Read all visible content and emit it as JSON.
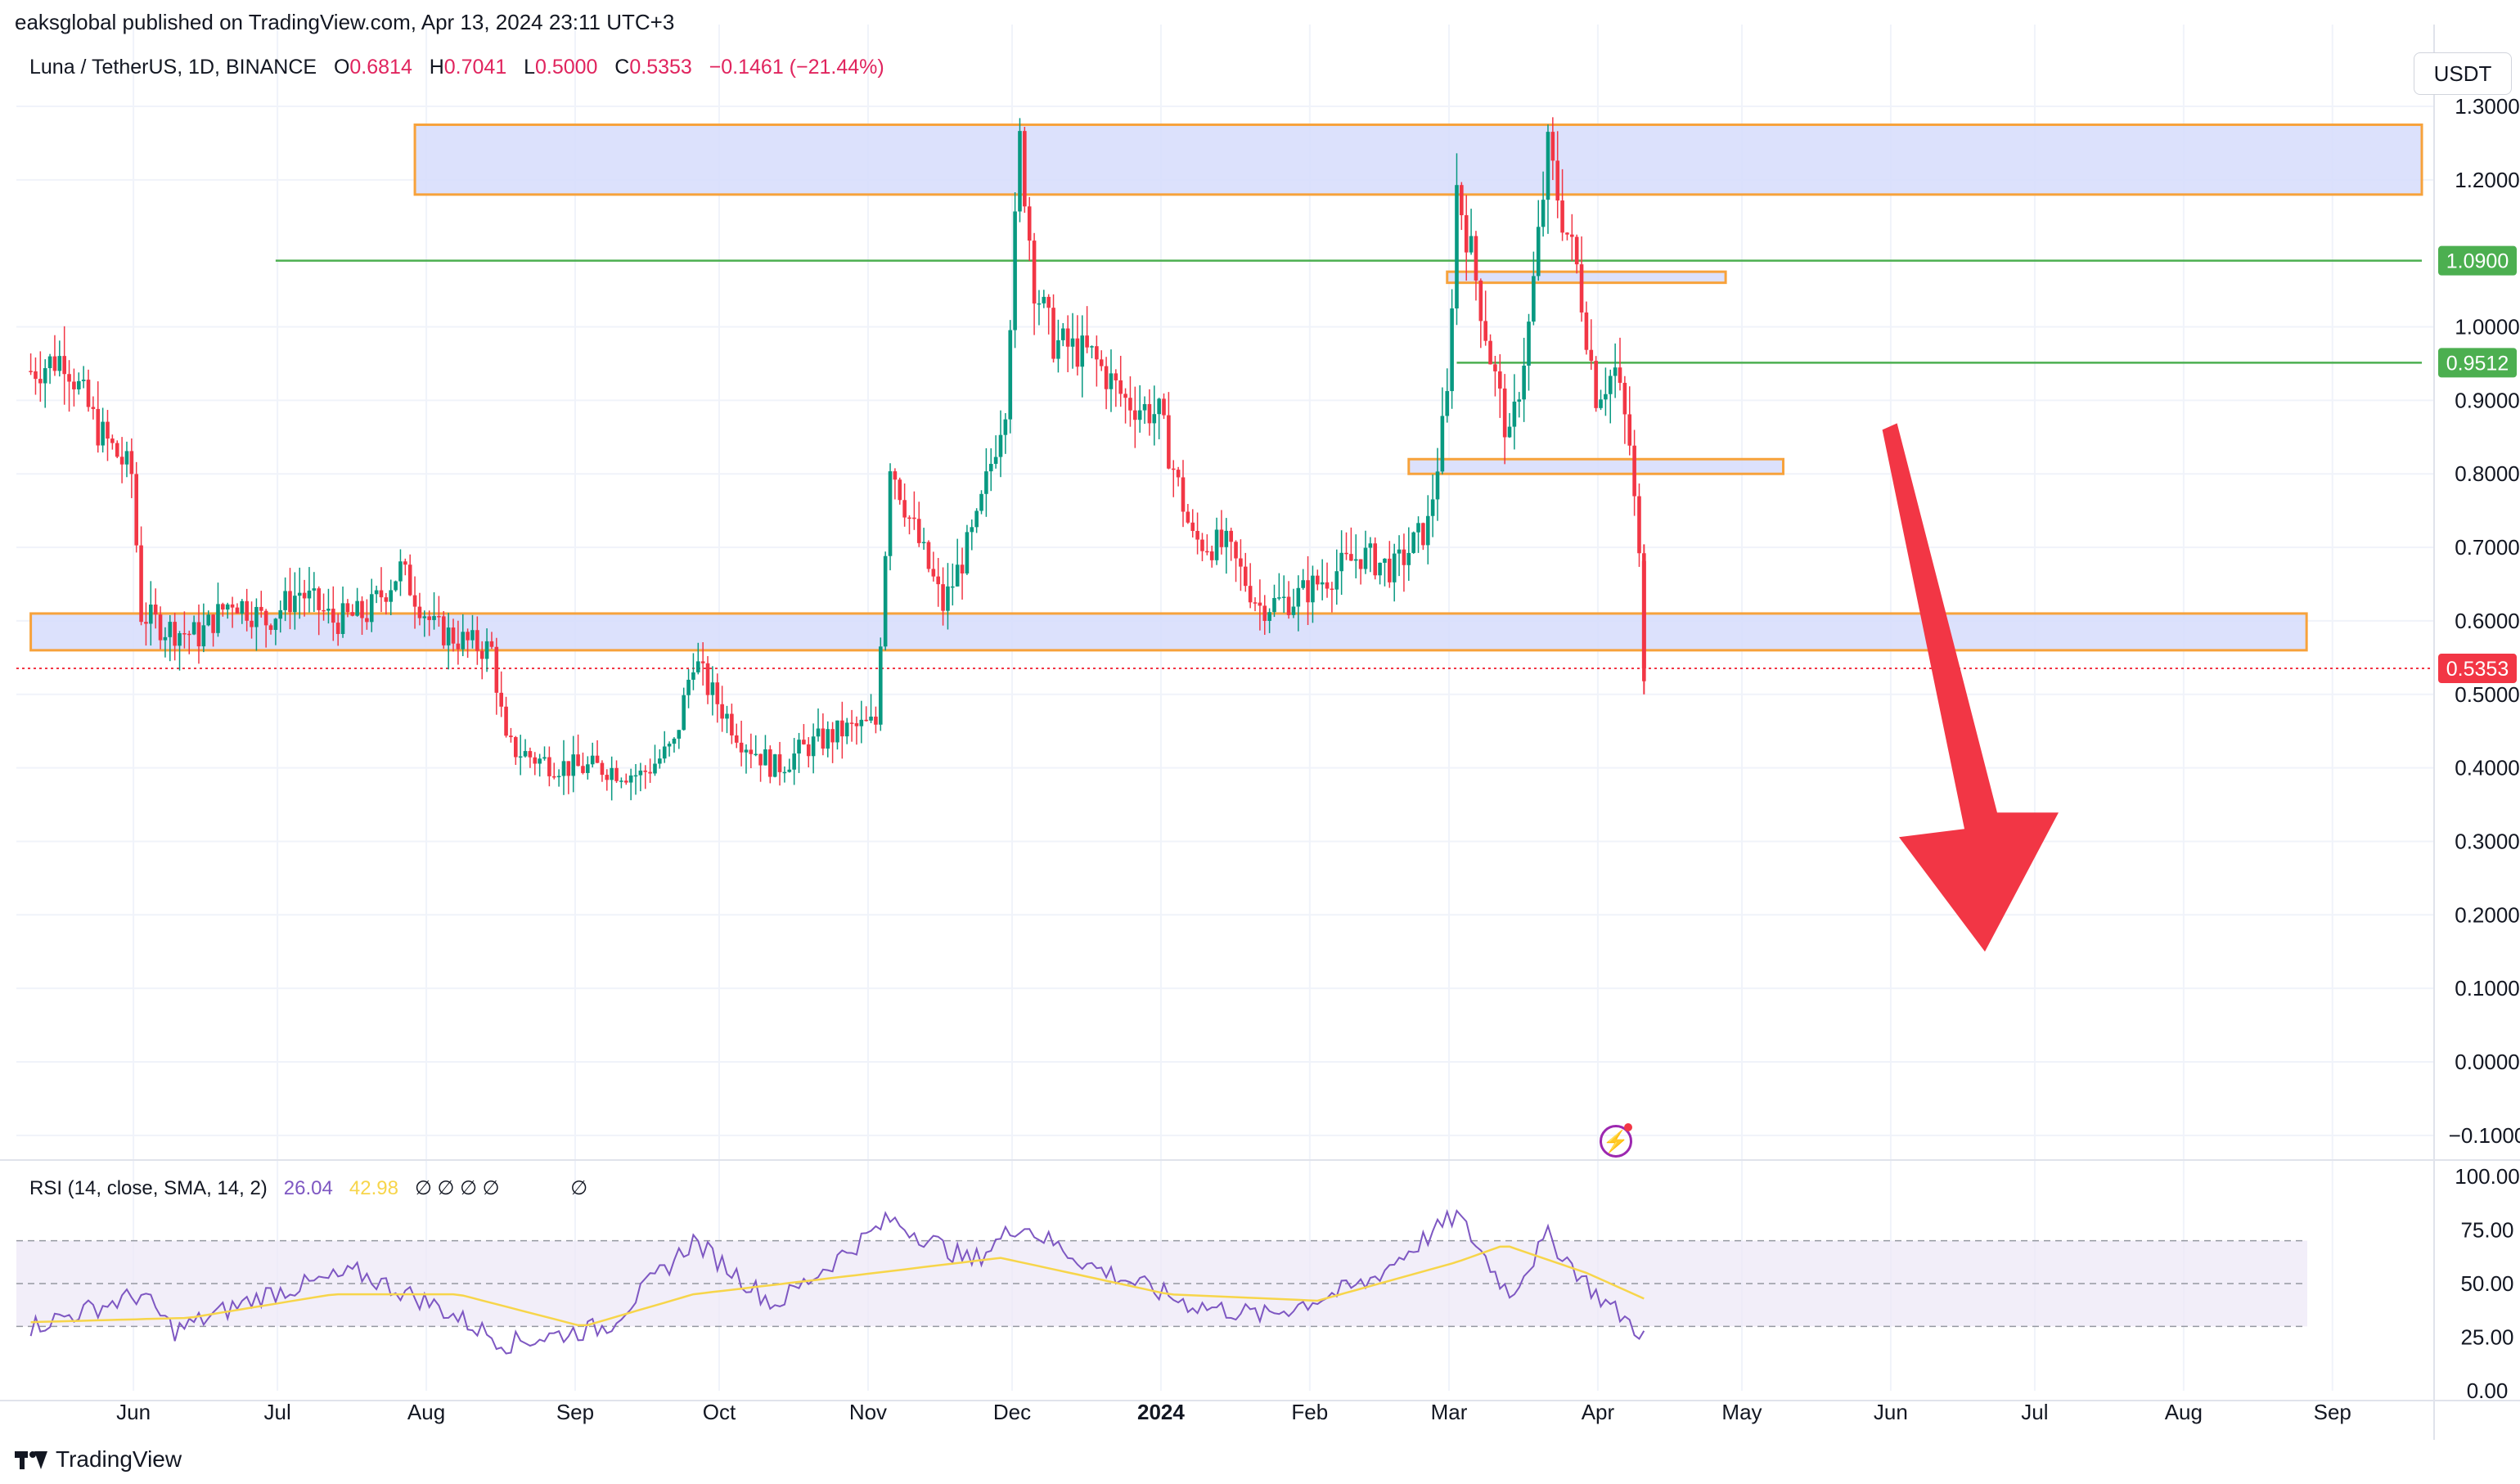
{
  "header": {
    "published_text": "eaksglobal published on TradingView.com, Apr 13, 2024 23:11 UTC+3"
  },
  "legend": {
    "symbol": "Luna / TetherUS, 1D, BINANCE",
    "open_label": "O",
    "open_value": "0.6814",
    "high_label": "H",
    "high_value": "0.7041",
    "low_label": "L",
    "low_value": "0.5000",
    "close_label": "C",
    "close_value": "0.5353",
    "change_value": "−0.1461 (−21.44%)"
  },
  "currency_button": {
    "label": "USDT"
  },
  "rsi_legend": {
    "label": "RSI (14, close, SMA, 14, 2)",
    "rsi_value": "26.04",
    "sma_value": "42.98",
    "extra": "∅ ∅ ∅ ∅",
    "extra2": "∅"
  },
  "footer": {
    "brand": "TradingView"
  },
  "colors": {
    "up": "#089981",
    "down": "#f23645",
    "zone_fill": "#d6dcfb",
    "zone_border": "#f7a23b",
    "green_line": "#4caf50",
    "rsi_line": "#7e57c2",
    "rsi_sma": "#f7d54a",
    "rsi_band": "#ede7f6",
    "arrow": "#f23645"
  },
  "chart_data": [
    {
      "type": "candlestick",
      "title": "Luna / TetherUS, 1D, BINANCE",
      "x_ticks": [
        "Jun",
        "Jul",
        "Aug",
        "Sep",
        "Oct",
        "Nov",
        "Dec",
        "2024",
        "Feb",
        "Mar",
        "Apr",
        "May",
        "Jun",
        "Jul",
        "Aug",
        "Sep"
      ],
      "y_ticks": [
        "1.3000",
        "1.2000",
        "1.0000",
        "0.9000",
        "0.8000",
        "0.7000",
        "0.6000",
        "0.5000",
        "0.4000",
        "0.3000",
        "0.2000",
        "0.1000",
        "0.0000",
        "−0.1000"
      ],
      "y_range": [
        -0.1,
        1.38
      ],
      "price_labels": [
        {
          "text": "1.0900",
          "value": 1.09,
          "color": "#4caf50"
        },
        {
          "text": "0.9512",
          "value": 0.9512,
          "color": "#4caf50"
        },
        {
          "text": "0.5353",
          "value": 0.5353,
          "color": "#f23645"
        }
      ],
      "series_points": [
        [
          "2023-05-13",
          0.94
        ],
        [
          "2023-05-20",
          0.96
        ],
        [
          "2023-05-27",
          0.86
        ],
        [
          "2023-06-03",
          0.8
        ],
        [
          "2023-06-05",
          0.61
        ],
        [
          "2023-06-10",
          0.59
        ],
        [
          "2023-06-17",
          0.58
        ],
        [
          "2023-06-24",
          0.63
        ],
        [
          "2023-07-01",
          0.6
        ],
        [
          "2023-07-08",
          0.64
        ],
        [
          "2023-07-15",
          0.6
        ],
        [
          "2023-07-22",
          0.61
        ],
        [
          "2023-07-29",
          0.67
        ],
        [
          "2023-08-05",
          0.59
        ],
        [
          "2023-08-12",
          0.57
        ],
        [
          "2023-08-17",
          0.56
        ],
        [
          "2023-08-20",
          0.43
        ],
        [
          "2023-08-27",
          0.41
        ],
        [
          "2023-09-03",
          0.4
        ],
        [
          "2023-09-10",
          0.4
        ],
        [
          "2023-09-17",
          0.39
        ],
        [
          "2023-09-24",
          0.43
        ],
        [
          "2023-09-28",
          0.55
        ],
        [
          "2023-10-01",
          0.51
        ],
        [
          "2023-10-08",
          0.44
        ],
        [
          "2023-10-15",
          0.4
        ],
        [
          "2023-10-22",
          0.43
        ],
        [
          "2023-10-29",
          0.45
        ],
        [
          "2023-11-05",
          0.46
        ],
        [
          "2023-11-08",
          0.82
        ],
        [
          "2023-11-12",
          0.74
        ],
        [
          "2023-11-19",
          0.62
        ],
        [
          "2023-11-26",
          0.73
        ],
        [
          "2023-12-02",
          0.9
        ],
        [
          "2023-12-05",
          1.25
        ],
        [
          "2023-12-08",
          1.06
        ],
        [
          "2023-12-12",
          0.98
        ],
        [
          "2023-12-20",
          0.96
        ],
        [
          "2023-12-27",
          0.9
        ],
        [
          "2024-01-03",
          0.88
        ],
        [
          "2024-01-10",
          0.71
        ],
        [
          "2024-01-17",
          0.7
        ],
        [
          "2024-01-24",
          0.62
        ],
        [
          "2024-01-31",
          0.63
        ],
        [
          "2024-02-07",
          0.66
        ],
        [
          "2024-02-14",
          0.69
        ],
        [
          "2024-02-21",
          0.67
        ],
        [
          "2024-02-28",
          0.73
        ],
        [
          "2024-03-03",
          0.9
        ],
        [
          "2024-03-05",
          1.19
        ],
        [
          "2024-03-08",
          1.1
        ],
        [
          "2024-03-12",
          0.96
        ],
        [
          "2024-03-16",
          0.84
        ],
        [
          "2024-03-20",
          1.0
        ],
        [
          "2024-03-24",
          1.24
        ],
        [
          "2024-03-27",
          1.15
        ],
        [
          "2024-03-30",
          1.08
        ],
        [
          "2024-04-03",
          0.91
        ],
        [
          "2024-04-07",
          0.94
        ],
        [
          "2024-04-10",
          0.84
        ],
        [
          "2024-04-12",
          0.68
        ],
        [
          "2024-04-13",
          0.5353
        ]
      ],
      "zones": [
        {
          "from": "2023-08-01",
          "to": "2024-09-22",
          "low": 1.18,
          "high": 1.275
        },
        {
          "from": "2023-05-13",
          "to": "2024-08-29",
          "low": 0.56,
          "high": 0.61
        },
        {
          "from": "2024-03-03",
          "to": "2024-04-30",
          "low": 1.06,
          "high": 1.075
        },
        {
          "from": "2024-02-24",
          "to": "2024-05-12",
          "low": 0.8,
          "high": 0.82
        }
      ],
      "lines": [
        {
          "from": "2023-07-03",
          "to": "2024-09-22",
          "value": 1.09
        },
        {
          "from": "2024-03-05",
          "to": "2024-09-22",
          "value": 0.9512
        },
        {
          "from": "2023-05-13",
          "to": "2024-09-22",
          "value": 0.5353
        }
      ],
      "arrow": {
        "from": [
          "2024-06-03",
          0.86
        ],
        "to": [
          "2024-06-23",
          0.15
        ]
      }
    },
    {
      "type": "line",
      "title": "RSI (14, close, SMA, 14, 2)",
      "y_ticks": [
        "100.00",
        "75.00",
        "50.00",
        "25.00",
        "0.00"
      ],
      "y_range": [
        0,
        100
      ],
      "band": [
        30,
        70
      ],
      "series": [
        {
          "name": "RSI",
          "values": [
            [
              "2023-05-13",
              30
            ],
            [
              "2023-06-05",
              45
            ],
            [
              "2023-06-12",
              28
            ],
            [
              "2023-07-01",
              45
            ],
            [
              "2023-07-20",
              55
            ],
            [
              "2023-08-05",
              40
            ],
            [
              "2023-08-20",
              22
            ],
            [
              "2023-09-10",
              30
            ],
            [
              "2023-09-28",
              70
            ],
            [
              "2023-10-15",
              40
            ],
            [
              "2023-11-08",
              80
            ],
            [
              "2023-11-25",
              60
            ],
            [
              "2023-12-05",
              78
            ],
            [
              "2023-12-20",
              58
            ],
            [
              "2024-01-10",
              40
            ],
            [
              "2024-01-25",
              35
            ],
            [
              "2024-02-15",
              50
            ],
            [
              "2024-03-05",
              82
            ],
            [
              "2024-03-16",
              45
            ],
            [
              "2024-03-24",
              72
            ],
            [
              "2024-04-03",
              45
            ],
            [
              "2024-04-13",
              26.04
            ]
          ]
        },
        {
          "name": "RSI-based MA",
          "values": [
            [
              "2023-05-13",
              32
            ],
            [
              "2023-06-15",
              34
            ],
            [
              "2023-07-15",
              45
            ],
            [
              "2023-08-10",
              45
            ],
            [
              "2023-09-05",
              30
            ],
            [
              "2023-09-28",
              45
            ],
            [
              "2023-11-05",
              55
            ],
            [
              "2023-12-01",
              62
            ],
            [
              "2024-01-05",
              45
            ],
            [
              "2024-02-05",
              42
            ],
            [
              "2024-03-05",
              60
            ],
            [
              "2024-03-15",
              68
            ],
            [
              "2024-04-01",
              55
            ],
            [
              "2024-04-13",
              42.98
            ]
          ]
        }
      ]
    }
  ]
}
